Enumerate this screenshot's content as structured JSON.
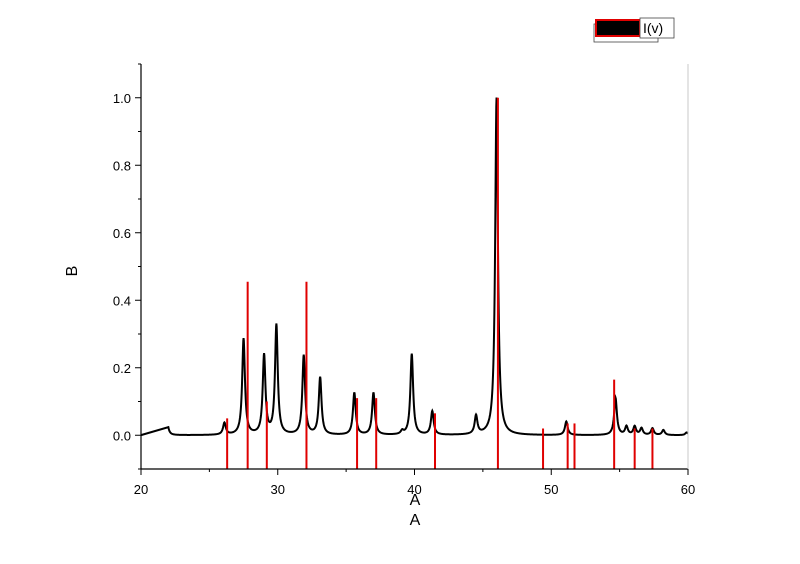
{
  "chart_data": {
    "type": "line",
    "xlabel": "A",
    "xlabel_secondary": "A",
    "ylabel": "B",
    "xlim": [
      20,
      60
    ],
    "ylim": [
      -0.1,
      1.1
    ],
    "x_ticks": [
      20,
      30,
      40,
      50,
      60
    ],
    "x_tick_labels": [
      "20",
      "30",
      "40",
      "50",
      "60"
    ],
    "y_ticks": [
      0.0,
      0.2,
      0.4,
      0.6,
      0.8,
      1.0
    ],
    "y_tick_labels": [
      "0.0",
      "0.2",
      "0.4",
      "0.6",
      "0.8",
      "1.0"
    ],
    "grid": false,
    "legend": {
      "position": "top-right",
      "entries": [
        "I(v)"
      ]
    },
    "colors": {
      "pattern": "#000000",
      "reference": "#e00000",
      "legend_fill": "#000000",
      "legend_border": "#e00000"
    },
    "series": [
      {
        "name": "I(v)",
        "kind": "profile",
        "baseline": 0.0,
        "peaks": [
          {
            "x": 21.9,
            "y": 0.04
          },
          {
            "x": 26.1,
            "y": 0.035
          },
          {
            "x": 27.5,
            "y": 0.285
          },
          {
            "x": 29.0,
            "y": 0.235
          },
          {
            "x": 29.9,
            "y": 0.325
          },
          {
            "x": 31.9,
            "y": 0.235
          },
          {
            "x": 33.1,
            "y": 0.17
          },
          {
            "x": 35.6,
            "y": 0.125
          },
          {
            "x": 37.0,
            "y": 0.125
          },
          {
            "x": 39.1,
            "y": 0.01
          },
          {
            "x": 39.8,
            "y": 0.24
          },
          {
            "x": 41.3,
            "y": 0.07
          },
          {
            "x": 44.5,
            "y": 0.055
          },
          {
            "x": 46.0,
            "y": 1.0
          },
          {
            "x": 51.1,
            "y": 0.04
          },
          {
            "x": 54.7,
            "y": 0.11
          },
          {
            "x": 55.5,
            "y": 0.025
          },
          {
            "x": 56.1,
            "y": 0.025
          },
          {
            "x": 56.6,
            "y": 0.02
          },
          {
            "x": 57.4,
            "y": 0.02
          },
          {
            "x": 58.2,
            "y": 0.015
          },
          {
            "x": 59.9,
            "y": 0.008
          }
        ]
      },
      {
        "name": "",
        "kind": "sticks",
        "x": [
          26.3,
          27.8,
          29.2,
          32.1,
          35.8,
          37.2,
          41.5,
          46.1,
          49.4,
          51.2,
          51.7,
          54.6,
          56.1,
          57.4
        ],
        "y": [
          0.05,
          0.455,
          0.1,
          0.455,
          0.11,
          0.11,
          0.065,
          1.0,
          0.02,
          0.035,
          0.035,
          0.165,
          0.02,
          0.02
        ]
      }
    ]
  }
}
